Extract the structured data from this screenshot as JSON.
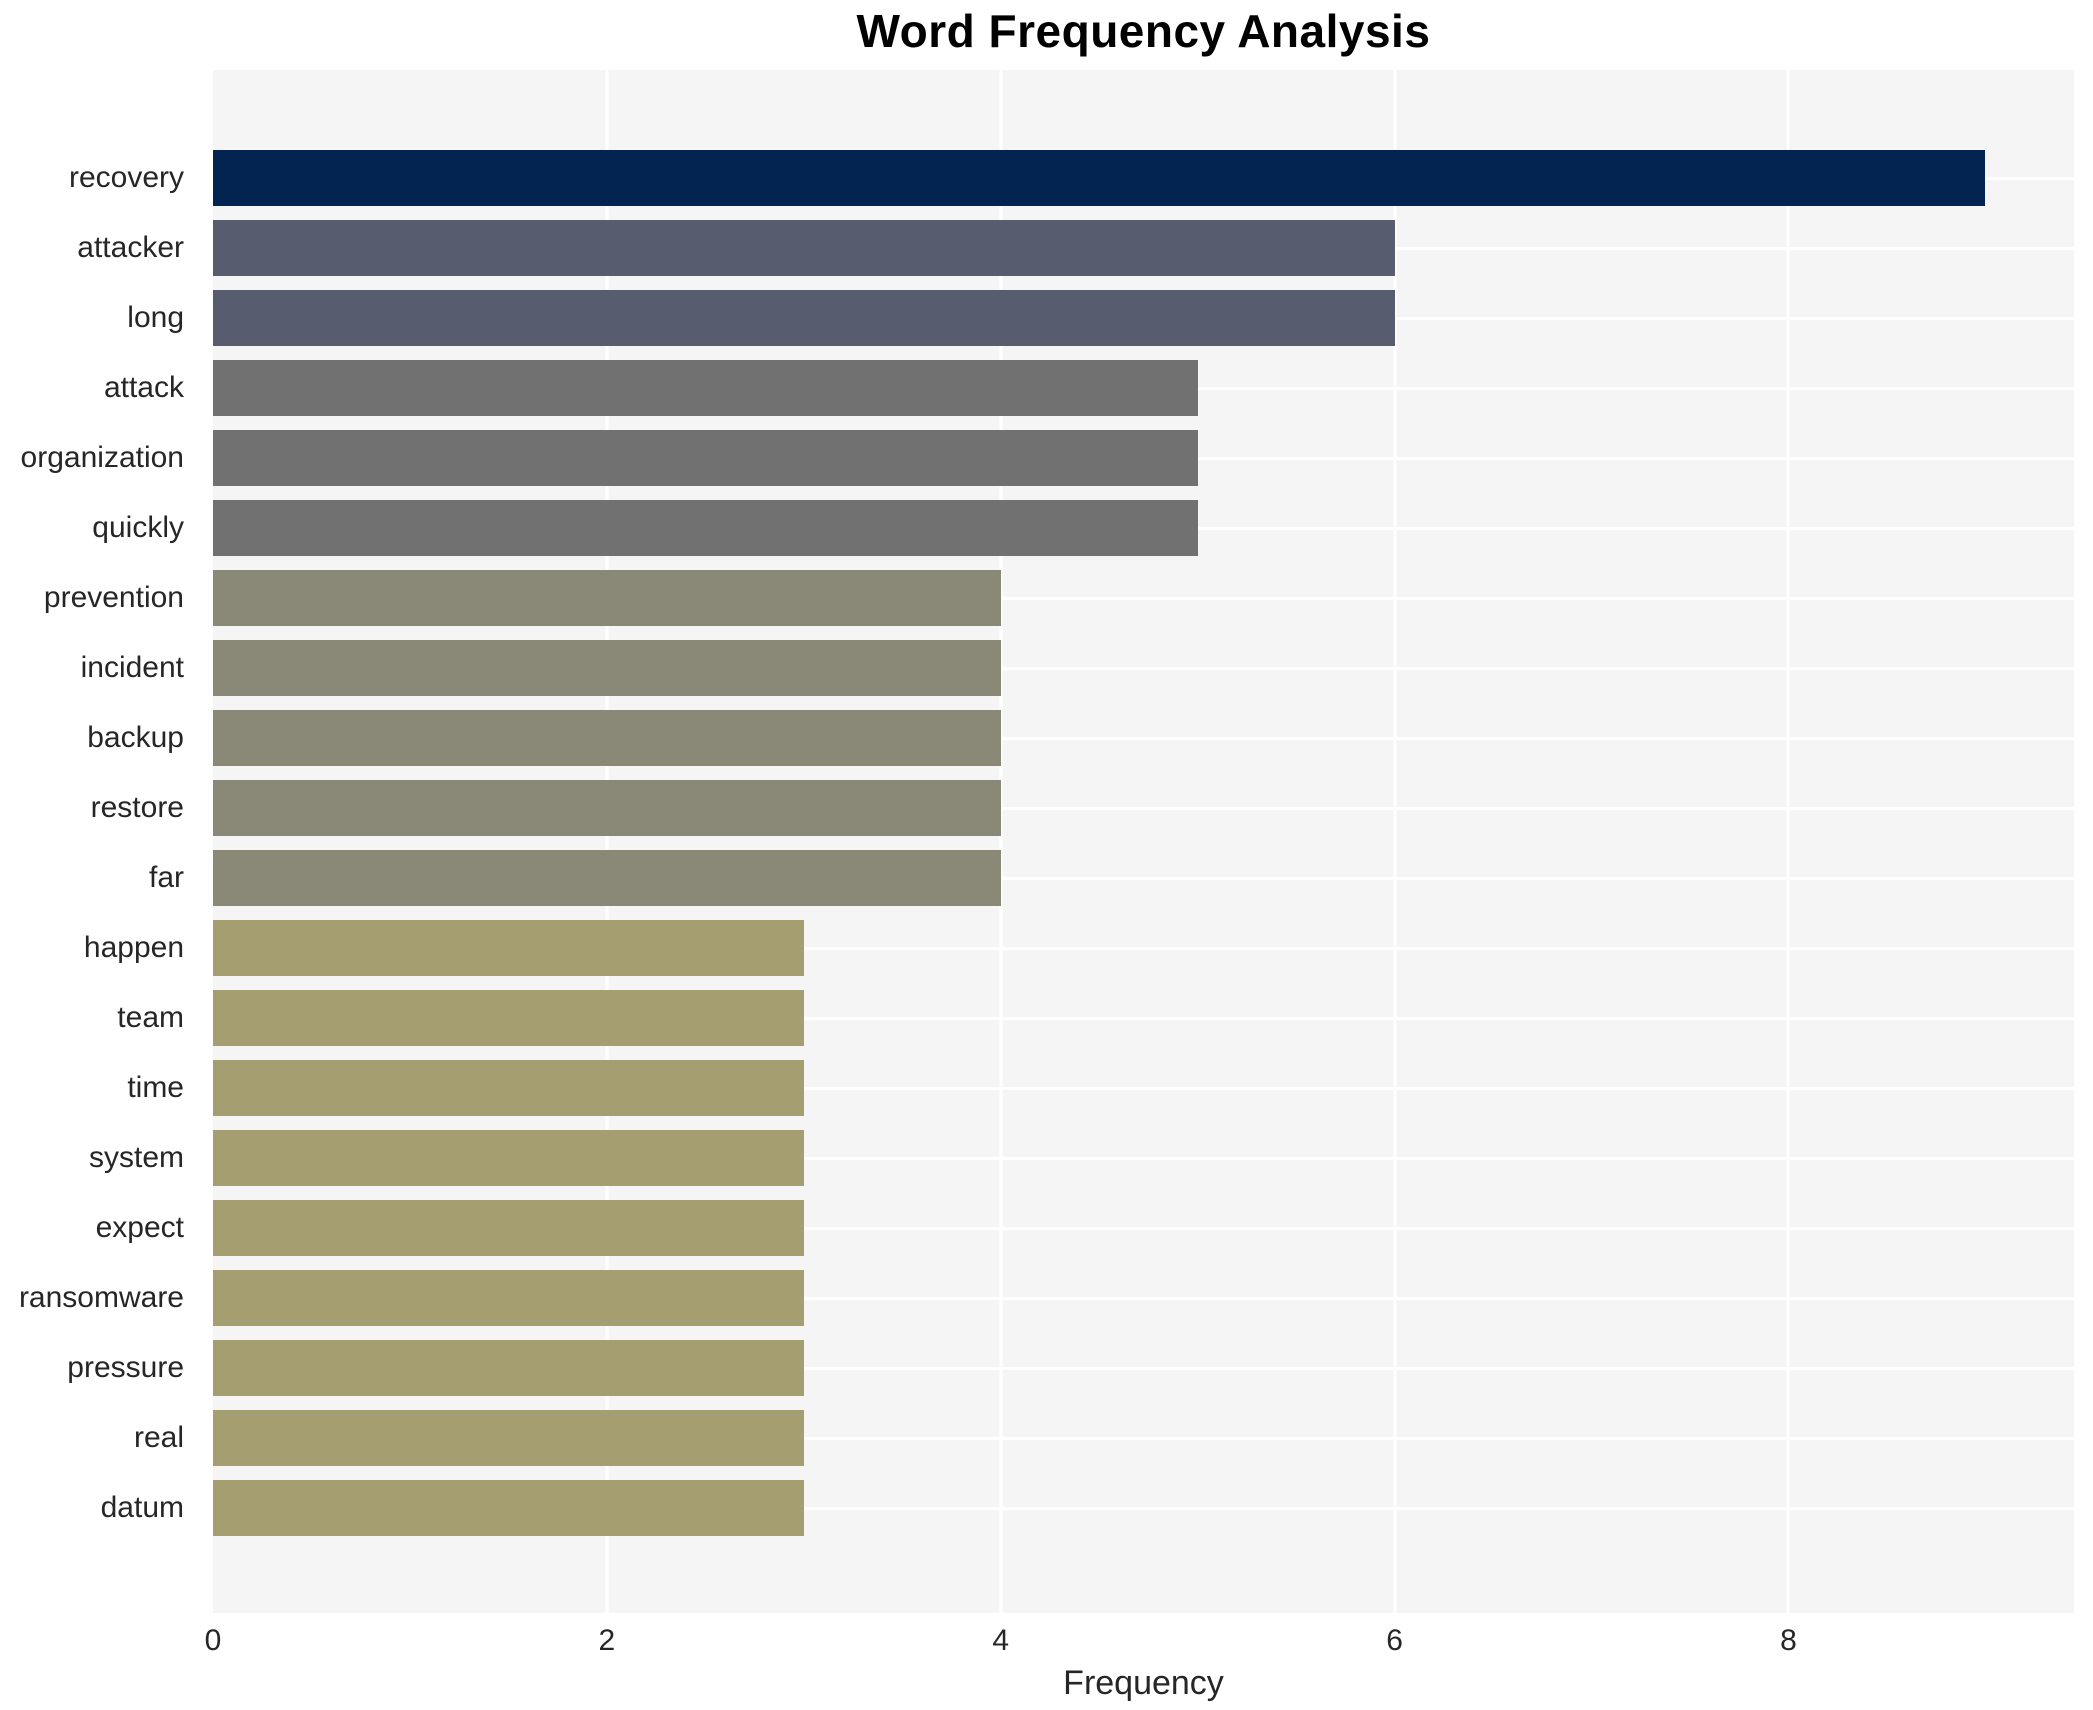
{
  "title": "Word Frequency Analysis",
  "chart_data": {
    "type": "bar",
    "orientation": "horizontal",
    "title": "Word Frequency Analysis",
    "xlabel": "Frequency",
    "ylabel": "",
    "categories": [
      "recovery",
      "attacker",
      "long",
      "attack",
      "organization",
      "quickly",
      "prevention",
      "incident",
      "backup",
      "restore",
      "far",
      "happen",
      "team",
      "time",
      "system",
      "expect",
      "ransomware",
      "pressure",
      "real",
      "datum"
    ],
    "values": [
      9,
      6,
      6,
      5,
      5,
      5,
      4,
      4,
      4,
      4,
      4,
      3,
      3,
      3,
      3,
      3,
      3,
      3,
      3,
      3
    ],
    "bar_colors": [
      "#032450",
      "#575d6e",
      "#575d6e",
      "#717171",
      "#717171",
      "#717171",
      "#8a8977",
      "#8a8977",
      "#8a8977",
      "#8a8977",
      "#8a8977",
      "#a49e70",
      "#a49e70",
      "#a49e70",
      "#a49e70",
      "#a49e70",
      "#a49e70",
      "#a49e70",
      "#a49e70",
      "#a49e70"
    ],
    "xlim": [
      0,
      9.45
    ],
    "xticks": [
      0,
      2,
      4,
      6,
      8
    ],
    "grid": "on",
    "legend": "none",
    "colormap": "cividis",
    "plot_bg_color": "#f5f5f5",
    "grid_color": "#ffffff",
    "tick_label_color": "#262626",
    "title_color": "#000000"
  }
}
